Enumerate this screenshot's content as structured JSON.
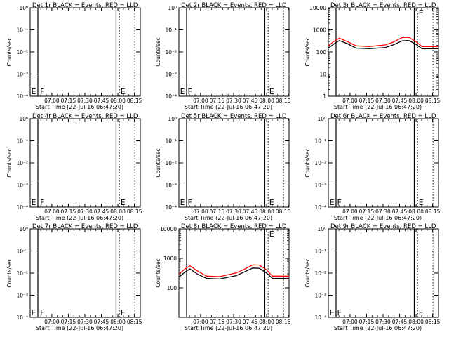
{
  "figure": {
    "background": "#ffffff",
    "event_color": "#000000",
    "lld_color": "#ff0000",
    "line_color": "#000000",
    "x_tick_labels": [
      "07:00",
      "07:15",
      "07:30",
      "07:45",
      "08:00",
      "08:15"
    ],
    "x_label": "Start Time (22-Jul-16 06:47:20)",
    "y_label": "Counts/sec",
    "marker_F": "F",
    "marker_E": "E"
  },
  "chart_data": [
    {
      "type": "line",
      "title": "Det 1r BLACK = Events, RED = LLD",
      "xlabel": "Start Time (22-Jul-16 06:47:20)",
      "ylabel": "Counts/sec",
      "xlim_minutes": [
        -7,
        93
      ],
      "ylim": "empty",
      "y_ticks": [
        "10⁻⁴",
        "10⁻³",
        "10⁻²",
        "10⁻¹",
        "10⁰"
      ],
      "x_ticks": [
        "07:00",
        "07:15",
        "07:30",
        "07:45",
        "08:00",
        "08:15"
      ],
      "solid_lines_min": [
        0,
        71
      ],
      "dotted_lines_min": [
        74,
        88
      ],
      "markers": [
        {
          "label": "E",
          "min": -6,
          "pos": "bottom"
        },
        {
          "label": "F",
          "min": 2,
          "pos": "bottom"
        },
        {
          "label": "E",
          "min": 75,
          "pos": "bottom"
        }
      ],
      "series": []
    },
    {
      "type": "line",
      "title": "Det 2r BLACK = Events, RED = LLD",
      "xlabel": "Start Time (22-Jul-16 06:47:20)",
      "ylabel": "Counts/sec",
      "xlim_minutes": [
        -7,
        93
      ],
      "ylim": "empty",
      "y_ticks": [
        "10⁻⁴",
        "10⁻³",
        "10⁻²",
        "10⁻¹",
        "10⁰"
      ],
      "x_ticks": [
        "07:00",
        "07:15",
        "07:30",
        "07:45",
        "08:00",
        "08:15"
      ],
      "solid_lines_min": [
        0,
        71
      ],
      "dotted_lines_min": [
        74,
        88
      ],
      "markers": [
        {
          "label": "E",
          "min": -6,
          "pos": "bottom"
        },
        {
          "label": "F",
          "min": 1,
          "pos": "bottom"
        },
        {
          "label": "E",
          "min": 75,
          "pos": "bottom"
        }
      ],
      "series": []
    },
    {
      "type": "line",
      "title": "Det 3r BLACK = Events, RED = LLD",
      "xlabel": "Start Time (22-Jul-16 06:47:20)",
      "ylabel": "Counts/sec",
      "xlim_minutes": [
        -7,
        93
      ],
      "ylim": [
        1,
        10000
      ],
      "y_ticks": [
        "1",
        "10",
        "100",
        "1000",
        "10000"
      ],
      "x_ticks": [
        "07:00",
        "07:15",
        "07:30",
        "07:45",
        "08:00",
        "08:15"
      ],
      "solid_lines_min": [
        0,
        71
      ],
      "dotted_lines_min": [
        74,
        88
      ],
      "markers": [
        {
          "label": "E",
          "min": 75,
          "pos": "top"
        }
      ],
      "series": [
        {
          "name": "Events",
          "color": "#000000",
          "x_min": [
            -7,
            -2,
            3,
            10,
            18,
            30,
            45,
            52,
            60,
            66,
            72,
            78,
            88,
            93
          ],
          "y": [
            150,
            230,
            330,
            240,
            150,
            140,
            160,
            210,
            320,
            330,
            230,
            140,
            140,
            140
          ]
        },
        {
          "name": "LLD",
          "color": "#ff0000",
          "x_min": [
            -7,
            -2,
            3,
            10,
            18,
            30,
            45,
            52,
            60,
            66,
            72,
            78,
            88,
            93
          ],
          "y": [
            190,
            300,
            420,
            300,
            190,
            175,
            210,
            280,
            450,
            460,
            310,
            175,
            175,
            175
          ]
        }
      ]
    },
    {
      "type": "line",
      "title": "Det 4r BLACK = Events, RED = LLD",
      "xlabel": "Start Time (22-Jul-16 06:47:20)",
      "ylabel": "Counts/sec",
      "xlim_minutes": [
        -7,
        93
      ],
      "ylim": "empty",
      "y_ticks": [
        "10⁻⁴",
        "10⁻³",
        "10⁻²",
        "10⁻¹",
        "10⁰"
      ],
      "x_ticks": [
        "07:00",
        "07:15",
        "07:30",
        "07:45",
        "08:00",
        "08:15"
      ],
      "solid_lines_min": [
        0,
        71
      ],
      "dotted_lines_min": [
        74,
        88
      ],
      "markers": [
        {
          "label": "E",
          "min": -6,
          "pos": "bottom"
        },
        {
          "label": "F",
          "min": 2,
          "pos": "bottom"
        },
        {
          "label": "E",
          "min": 75,
          "pos": "bottom"
        }
      ],
      "series": []
    },
    {
      "type": "line",
      "title": "Det 5r BLACK = Events, RED = LLD",
      "xlabel": "Start Time (22-Jul-16 06:47:20)",
      "ylabel": "Counts/sec",
      "xlim_minutes": [
        -7,
        93
      ],
      "ylim": "empty",
      "y_ticks": [
        "10⁻⁴",
        "10⁻³",
        "10⁻²",
        "10⁻¹",
        "10⁰"
      ],
      "x_ticks": [
        "07:00",
        "07:15",
        "07:30",
        "07:45",
        "08:00",
        "08:15"
      ],
      "solid_lines_min": [
        0,
        71
      ],
      "dotted_lines_min": [
        74,
        88
      ],
      "markers": [
        {
          "label": "E",
          "min": -6,
          "pos": "bottom"
        },
        {
          "label": "F",
          "min": 1,
          "pos": "bottom"
        },
        {
          "label": "E",
          "min": 75,
          "pos": "bottom"
        }
      ],
      "series": []
    },
    {
      "type": "line",
      "title": "Det 6r BLACK = Events, RED = LLD",
      "xlabel": "Start Time (22-Jul-16 06:47:20)",
      "ylabel": "Counts/sec",
      "xlim_minutes": [
        -7,
        93
      ],
      "ylim": "empty",
      "y_ticks": [
        "10⁻⁴",
        "10⁻³",
        "10⁻²",
        "10⁻¹",
        "10⁰"
      ],
      "x_ticks": [
        "07:00",
        "07:15",
        "07:30",
        "07:45",
        "08:00",
        "08:15"
      ],
      "solid_lines_min": [
        0,
        71
      ],
      "dotted_lines_min": [
        74,
        88
      ],
      "markers": [
        {
          "label": "E",
          "min": -6,
          "pos": "bottom"
        },
        {
          "label": "F",
          "min": 1,
          "pos": "bottom"
        },
        {
          "label": "E",
          "min": 75,
          "pos": "bottom"
        }
      ],
      "series": []
    },
    {
      "type": "line",
      "title": "Det 7r BLACK = Events, RED = LLD",
      "xlabel": "Start Time (22-Jul-16 06:47:20)",
      "ylabel": "Counts/sec",
      "xlim_minutes": [
        -7,
        93
      ],
      "ylim": "empty",
      "y_ticks": [
        "10⁻⁴",
        "10⁻³",
        "10⁻²",
        "10⁻¹",
        "10⁰"
      ],
      "x_ticks": [
        "07:00",
        "07:15",
        "07:30",
        "07:45",
        "08:00",
        "08:15"
      ],
      "solid_lines_min": [
        0,
        71
      ],
      "dotted_lines_min": [
        74,
        88
      ],
      "markers": [
        {
          "label": "E",
          "min": -6,
          "pos": "bottom"
        },
        {
          "label": "F",
          "min": 2,
          "pos": "bottom"
        },
        {
          "label": "E",
          "min": 75,
          "pos": "bottom"
        }
      ],
      "series": []
    },
    {
      "type": "line",
      "title": "Det 8r BLACK = Events, RED = LLD",
      "xlabel": "Start Time (22-Jul-16 06:47:20)",
      "ylabel": "Counts/sec",
      "xlim_minutes": [
        -7,
        93
      ],
      "ylim": [
        10,
        10000
      ],
      "y_ticks": [
        "100",
        "1000",
        "10000"
      ],
      "x_ticks": [
        "07:00",
        "07:15",
        "07:30",
        "07:45",
        "08:00",
        "08:15"
      ],
      "solid_lines_min": [
        0,
        71
      ],
      "dotted_lines_min": [
        74,
        88
      ],
      "markers": [
        {
          "label": "E",
          "min": 75,
          "pos": "top"
        }
      ],
      "series": [
        {
          "name": "Events",
          "color": "#000000",
          "x_min": [
            -7,
            -2,
            3,
            10,
            18,
            30,
            45,
            52,
            60,
            66,
            72,
            78,
            88,
            93
          ],
          "y": [
            230,
            330,
            440,
            290,
            210,
            200,
            260,
            340,
            470,
            460,
            330,
            210,
            210,
            210
          ]
        },
        {
          "name": "LLD",
          "color": "#ff0000",
          "x_min": [
            -7,
            -2,
            3,
            10,
            18,
            30,
            45,
            52,
            60,
            66,
            72,
            78,
            88,
            93
          ],
          "y": [
            290,
            420,
            560,
            370,
            250,
            240,
            320,
            420,
            600,
            590,
            420,
            250,
            250,
            250
          ]
        }
      ]
    },
    {
      "type": "line",
      "title": "Det 9r BLACK = Events, RED = LLD",
      "xlabel": "Start Time (22-Jul-16 06:47:20)",
      "ylabel": "Counts/sec",
      "xlim_minutes": [
        -7,
        93
      ],
      "ylim": "empty",
      "y_ticks": [
        "10⁻⁴",
        "10⁻³",
        "10⁻²",
        "10⁻¹",
        "10⁰"
      ],
      "x_ticks": [
        "07:00",
        "07:15",
        "07:30",
        "07:45",
        "08:00",
        "08:15"
      ],
      "solid_lines_min": [
        0,
        71
      ],
      "dotted_lines_min": [
        74,
        88
      ],
      "markers": [
        {
          "label": "E",
          "min": -6,
          "pos": "bottom"
        },
        {
          "label": "F",
          "min": 1,
          "pos": "bottom"
        },
        {
          "label": "E",
          "min": 75,
          "pos": "bottom"
        }
      ],
      "series": []
    }
  ]
}
